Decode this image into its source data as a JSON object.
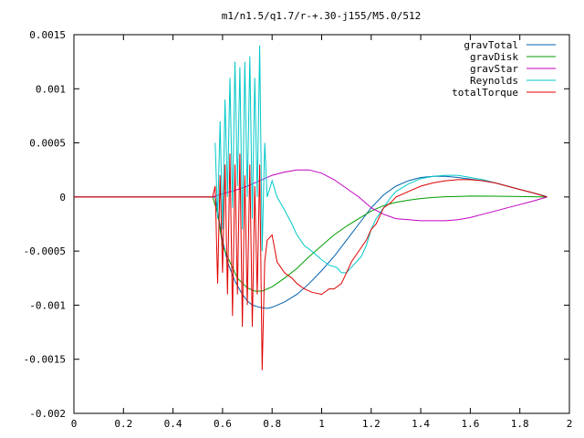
{
  "chart_data": {
    "type": "line",
    "title": "m1/n1.5/q1.7/r-+.30-j155/M5.0/512",
    "xlim": [
      0,
      2
    ],
    "ylim": [
      -0.002,
      0.0015
    ],
    "x_ticks": [
      "0",
      "0.2",
      "0.4",
      "0.6",
      "0.8",
      "1",
      "1.2",
      "1.4",
      "1.6",
      "1.8",
      "2"
    ],
    "y_ticks": [
      "0.0015",
      "0.001",
      "0.0005",
      "0",
      "-0.0005",
      "-0.001",
      "-0.0015",
      "-0.002"
    ],
    "legend_position": "top-right",
    "series": [
      {
        "name": "gravTotal",
        "color": "#0060ad",
        "x": [
          0,
          0.55,
          0.57,
          0.6,
          0.62,
          0.65,
          0.68,
          0.7,
          0.72,
          0.75,
          0.78,
          0.8,
          0.85,
          0.9,
          0.95,
          1.0,
          1.05,
          1.1,
          1.15,
          1.2,
          1.25,
          1.3,
          1.35,
          1.4,
          1.45,
          1.5,
          1.55,
          1.6,
          1.65,
          1.7,
          1.75,
          1.8,
          1.85,
          1.9,
          1.91
        ],
        "y": [
          0,
          0,
          0,
          -0.0004,
          -0.0006,
          -0.00078,
          -0.0009,
          -0.00096,
          -0.001,
          -0.00102,
          -0.00103,
          -0.00102,
          -0.00097,
          -0.0009,
          -0.0008,
          -0.00068,
          -0.00055,
          -0.0004,
          -0.00025,
          -0.0001,
          2e-05,
          0.0001,
          0.00015,
          0.00018,
          0.00019,
          0.00019,
          0.00018,
          0.000165,
          0.00015,
          0.00013,
          0.0001,
          7e-05,
          4e-05,
          1e-05,
          0
        ]
      },
      {
        "name": "gravDisk",
        "color": "#009e00",
        "x": [
          0,
          0.56,
          0.58,
          0.6,
          0.63,
          0.66,
          0.7,
          0.73,
          0.76,
          0.8,
          0.85,
          0.9,
          0.95,
          1.0,
          1.05,
          1.1,
          1.15,
          1.2,
          1.25,
          1.3,
          1.35,
          1.4,
          1.45,
          1.5,
          1.6,
          1.7,
          1.8,
          1.91
        ],
        "y": [
          0,
          0,
          -0.00015,
          -0.00045,
          -0.0006,
          -0.00075,
          -0.00084,
          -0.00087,
          -0.00087,
          -0.00083,
          -0.00075,
          -0.00066,
          -0.00055,
          -0.00045,
          -0.00035,
          -0.00027,
          -0.0002,
          -0.00013,
          -8e-05,
          -5e-05,
          -3e-05,
          -1.5e-05,
          -5e-06,
          2e-06,
          8e-06,
          7e-06,
          4e-06,
          0
        ]
      },
      {
        "name": "gravStar",
        "color": "#c000c0",
        "x": [
          0,
          0.56,
          0.6,
          0.65,
          0.7,
          0.75,
          0.8,
          0.85,
          0.9,
          0.95,
          1.0,
          1.05,
          1.1,
          1.15,
          1.2,
          1.25,
          1.3,
          1.35,
          1.4,
          1.45,
          1.5,
          1.55,
          1.6,
          1.65,
          1.7,
          1.75,
          1.8,
          1.85,
          1.91
        ],
        "y": [
          0,
          0,
          3e-05,
          6e-05,
          0.0001,
          0.00015,
          0.0002,
          0.00023,
          0.00025,
          0.00025,
          0.00022,
          0.00016,
          8e-05,
          0,
          -0.0001,
          -0.00016,
          -0.0002,
          -0.00021,
          -0.00022,
          -0.00022,
          -0.00022,
          -0.00021,
          -0.00019,
          -0.00016,
          -0.00013,
          -0.0001,
          -7e-05,
          -4e-05,
          0
        ]
      },
      {
        "name": "Reynolds",
        "color": "#00c8c8",
        "x": [
          0.57,
          0.58,
          0.59,
          0.6,
          0.61,
          0.62,
          0.63,
          0.64,
          0.65,
          0.66,
          0.67,
          0.68,
          0.69,
          0.7,
          0.71,
          0.72,
          0.73,
          0.74,
          0.75,
          0.76,
          0.77,
          0.78,
          0.8,
          0.82,
          0.85,
          0.88,
          0.9,
          0.93,
          0.96,
          1.0,
          1.03,
          1.06,
          1.08,
          1.1,
          1.12,
          1.14,
          1.16,
          1.18,
          1.2,
          1.22,
          1.25,
          1.28,
          1.3,
          1.35,
          1.4,
          1.45,
          1.5,
          1.55,
          1.6,
          1.65,
          1.7,
          1.75,
          1.8,
          1.85,
          1.91
        ],
        "y": [
          0.0005,
          -0.0002,
          0.0007,
          -0.0003,
          0.0009,
          0.0,
          0.0011,
          -0.0001,
          0.00125,
          0.0001,
          0.0012,
          -0.0003,
          0.00125,
          0.0,
          0.0013,
          -0.0002,
          0.0011,
          0.0,
          0.0014,
          -0.0005,
          0.0005,
          0.0,
          0.00015,
          0.0,
          -0.00012,
          -0.00025,
          -0.00035,
          -0.00045,
          -0.0005,
          -0.00058,
          -0.00063,
          -0.00065,
          -0.0007,
          -0.0007,
          -0.00065,
          -0.0006,
          -0.00055,
          -0.00045,
          -0.0003,
          -0.0002,
          -0.0001,
          0.0,
          5e-05,
          0.00012,
          0.00017,
          0.00019,
          0.0002,
          0.0002,
          0.00018,
          0.00016,
          0.00013,
          0.0001,
          7e-05,
          4e-05,
          0
        ]
      },
      {
        "name": "totalTorque",
        "color": "#e00000",
        "x": [
          0,
          0.56,
          0.57,
          0.58,
          0.59,
          0.6,
          0.61,
          0.62,
          0.63,
          0.64,
          0.65,
          0.66,
          0.67,
          0.68,
          0.69,
          0.7,
          0.71,
          0.72,
          0.73,
          0.74,
          0.75,
          0.76,
          0.77,
          0.78,
          0.8,
          0.82,
          0.85,
          0.88,
          0.9,
          0.93,
          0.96,
          1.0,
          1.03,
          1.05,
          1.08,
          1.1,
          1.12,
          1.15,
          1.18,
          1.2,
          1.22,
          1.25,
          1.28,
          1.3,
          1.35,
          1.4,
          1.45,
          1.5,
          1.55,
          1.6,
          1.65,
          1.7,
          1.75,
          1.8,
          1.85,
          1.91
        ],
        "y": [
          0,
          0,
          0.0001,
          -0.0008,
          0.0002,
          -0.0007,
          0.0003,
          -0.0009,
          0.0004,
          -0.0011,
          0.0003,
          -0.0009,
          0.0004,
          -0.0012,
          0.0002,
          -0.001,
          0.0003,
          -0.0012,
          0.0001,
          -0.0009,
          0.0003,
          -0.0016,
          -0.0006,
          -0.0004,
          -0.00035,
          -0.0006,
          -0.0007,
          -0.00075,
          -0.0008,
          -0.00085,
          -0.00088,
          -0.0009,
          -0.00085,
          -0.00085,
          -0.0008,
          -0.0007,
          -0.0006,
          -0.0005,
          -0.0004,
          -0.0003,
          -0.00025,
          -0.0001,
          -5e-05,
          0.0,
          5e-05,
          0.0001,
          0.00013,
          0.00015,
          0.00016,
          0.00016,
          0.00015,
          0.00013,
          0.0001,
          7e-05,
          4e-05,
          0
        ]
      }
    ]
  }
}
